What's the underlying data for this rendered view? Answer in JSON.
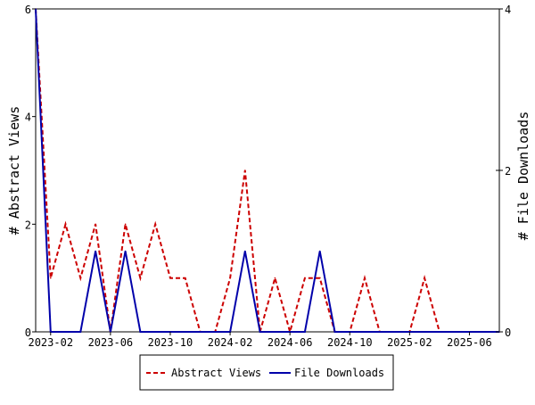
{
  "chart_data": {
    "type": "line",
    "title": "",
    "xlabel": "",
    "ylabel": "# Abstract Views",
    "y2label": "# File Downloads",
    "x_range": [
      "2023-01-01",
      "2025-08-01"
    ],
    "ylim": [
      0,
      6
    ],
    "y2lim": [
      0,
      4
    ],
    "y_ticks": [
      0,
      2,
      4,
      6
    ],
    "y2_ticks": [
      0,
      2,
      4
    ],
    "x_ticks": [
      "2023-02",
      "2023-06",
      "2023-10",
      "2024-02",
      "2024-06",
      "2024-10",
      "2025-02",
      "2025-06"
    ],
    "grid": false,
    "legend_position": "bottom-center",
    "x": [
      "2023-01",
      "2023-02",
      "2023-03",
      "2023-04",
      "2023-05",
      "2023-06",
      "2023-07",
      "2023-08",
      "2023-09",
      "2023-10",
      "2023-11",
      "2023-12",
      "2024-01",
      "2024-02",
      "2024-03",
      "2024-04",
      "2024-05",
      "2024-06",
      "2024-07",
      "2024-08",
      "2024-09",
      "2024-10",
      "2024-11",
      "2024-12",
      "2025-01",
      "2025-02",
      "2025-03",
      "2025-04",
      "2025-05",
      "2025-06",
      "2025-07",
      "2025-08"
    ],
    "series": [
      {
        "name": "Abstract Views",
        "axis": "left",
        "color": "#cc0000",
        "dash": true,
        "values": [
          6,
          1,
          2,
          1,
          2,
          0,
          2,
          1,
          2,
          1,
          1,
          0,
          0,
          1,
          3,
          0,
          1,
          0,
          1,
          1,
          0,
          0,
          1,
          0,
          0,
          0,
          1,
          0,
          0,
          0,
          0,
          0
        ]
      },
      {
        "name": "File Downloads",
        "axis": "right",
        "color": "#0000aa",
        "dash": false,
        "values": [
          4,
          0,
          0,
          0,
          1,
          0,
          1,
          0,
          0,
          0,
          0,
          0,
          0,
          0,
          1,
          0,
          0,
          0,
          0,
          1,
          0,
          0,
          0,
          0,
          0,
          0,
          0,
          0,
          0,
          0,
          0,
          0
        ]
      }
    ]
  }
}
